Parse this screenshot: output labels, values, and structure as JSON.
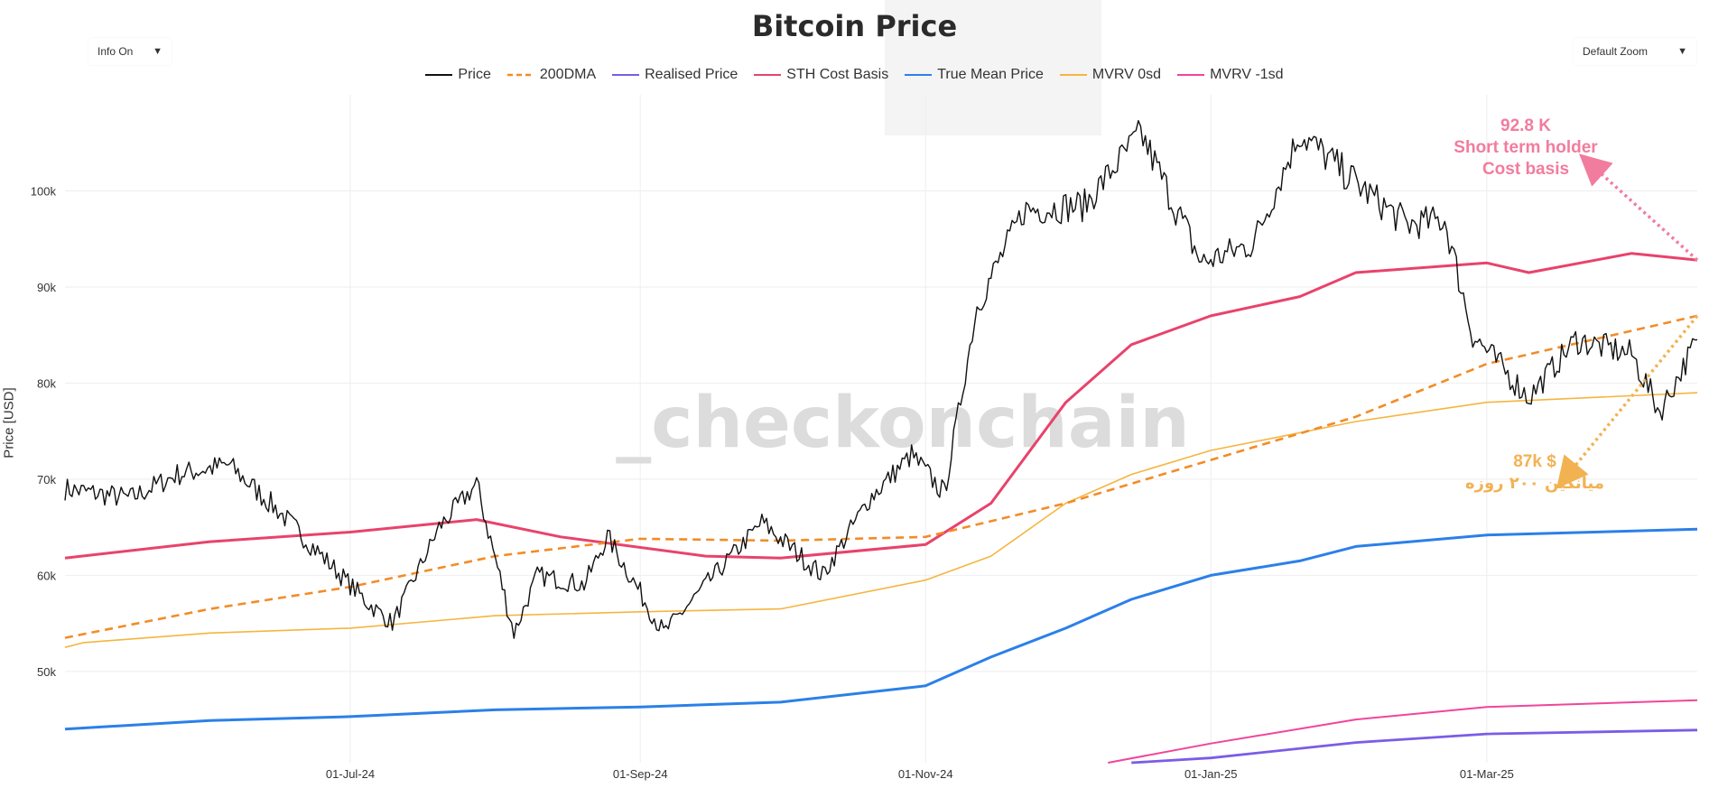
{
  "controls": {
    "info": {
      "label": "Info On"
    },
    "zoom": {
      "label": "Default Zoom"
    }
  },
  "chart_data": {
    "type": "line",
    "title": "Bitcoin Price",
    "ylabel": "Price [USD]",
    "xlabel": "",
    "ylim": [
      40500,
      110000
    ],
    "x_range": [
      "2024-05-01",
      "2025-04-15"
    ],
    "yticks": [
      {
        "value": 50000,
        "label": "50k"
      },
      {
        "value": 60000,
        "label": "60k"
      },
      {
        "value": 70000,
        "label": "70k"
      },
      {
        "value": 80000,
        "label": "80k"
      },
      {
        "value": 90000,
        "label": "90k"
      },
      {
        "value": 100000,
        "label": "100k"
      }
    ],
    "xticks": [
      {
        "date": "2024-07-01",
        "label": "01-Jul-24"
      },
      {
        "date": "2024-09-01",
        "label": "01-Sep-24"
      },
      {
        "date": "2024-11-01",
        "label": "01-Nov-24"
      },
      {
        "date": "2025-01-01",
        "label": "01-Jan-25"
      },
      {
        "date": "2025-03-01",
        "label": "01-Mar-25"
      }
    ],
    "grid": true,
    "legend_position": "top-center",
    "watermark": "_checkonchain",
    "series": [
      {
        "name": "Price",
        "color": "#111111",
        "style": "solid",
        "points": [
          [
            "2024-05-01",
            69000
          ],
          [
            "2024-05-15",
            68000
          ],
          [
            "2024-05-25",
            70500
          ],
          [
            "2024-06-05",
            71500
          ],
          [
            "2024-06-15",
            67000
          ],
          [
            "2024-06-25",
            62000
          ],
          [
            "2024-07-05",
            57000
          ],
          [
            "2024-07-10",
            55000
          ],
          [
            "2024-07-20",
            65000
          ],
          [
            "2024-07-28",
            69500
          ],
          [
            "2024-08-05",
            54000
          ],
          [
            "2024-08-10",
            60000
          ],
          [
            "2024-08-20",
            59000
          ],
          [
            "2024-08-25",
            64000
          ],
          [
            "2024-09-06",
            54000
          ],
          [
            "2024-09-15",
            59000
          ],
          [
            "2024-09-27",
            65500
          ],
          [
            "2024-10-10",
            60000
          ],
          [
            "2024-10-20",
            68000
          ],
          [
            "2024-10-29",
            72500
          ],
          [
            "2024-11-05",
            68500
          ],
          [
            "2024-11-12",
            88000
          ],
          [
            "2024-11-22",
            98000
          ],
          [
            "2024-12-05",
            98500
          ],
          [
            "2024-12-17",
            106000
          ],
          [
            "2024-12-30",
            92500
          ],
          [
            "2025-01-10",
            94500
          ],
          [
            "2025-01-20",
            106000
          ],
          [
            "2025-02-03",
            100000
          ],
          [
            "2025-02-12",
            96500
          ],
          [
            "2025-02-20",
            97000
          ],
          [
            "2025-02-26",
            85000
          ],
          [
            "2025-03-10",
            78500
          ],
          [
            "2025-03-20",
            84500
          ],
          [
            "2025-04-01",
            83000
          ],
          [
            "2025-04-07",
            77000
          ],
          [
            "2025-04-15",
            84500
          ]
        ]
      },
      {
        "name": "200DMA",
        "color": "#f28c28",
        "style": "dashed",
        "points": [
          [
            "2024-05-01",
            53500
          ],
          [
            "2024-06-01",
            56500
          ],
          [
            "2024-07-01",
            58800
          ],
          [
            "2024-08-01",
            62000
          ],
          [
            "2024-09-01",
            63800
          ],
          [
            "2024-10-01",
            63600
          ],
          [
            "2024-11-01",
            64000
          ],
          [
            "2024-12-01",
            67500
          ],
          [
            "2025-01-01",
            72000
          ],
          [
            "2025-02-01",
            76500
          ],
          [
            "2025-03-01",
            82000
          ],
          [
            "2025-04-15",
            87000
          ]
        ]
      },
      {
        "name": "Realised Price",
        "color": "#7b5ce6",
        "style": "solid",
        "points": [
          [
            "2024-12-15",
            40000
          ],
          [
            "2025-01-01",
            41000
          ],
          [
            "2025-02-01",
            42600
          ],
          [
            "2025-03-01",
            43500
          ],
          [
            "2025-04-15",
            43900
          ]
        ]
      },
      {
        "name": "STH Cost Basis",
        "color": "#e8436b",
        "style": "solid",
        "points": [
          [
            "2024-05-01",
            61800
          ],
          [
            "2024-06-01",
            63500
          ],
          [
            "2024-07-01",
            64500
          ],
          [
            "2024-07-28",
            65800
          ],
          [
            "2024-08-15",
            64000
          ],
          [
            "2024-09-15",
            62000
          ],
          [
            "2024-10-01",
            61800
          ],
          [
            "2024-11-01",
            63200
          ],
          [
            "2024-11-15",
            67500
          ],
          [
            "2024-12-01",
            78000
          ],
          [
            "2024-12-15",
            84000
          ],
          [
            "2025-01-01",
            87000
          ],
          [
            "2025-01-20",
            89000
          ],
          [
            "2025-02-01",
            91500
          ],
          [
            "2025-03-01",
            92500
          ],
          [
            "2025-03-10",
            91500
          ],
          [
            "2025-04-01",
            93500
          ],
          [
            "2025-04-15",
            92800
          ]
        ]
      },
      {
        "name": "True Mean Price",
        "color": "#2b80e8",
        "style": "solid",
        "points": [
          [
            "2024-05-01",
            44000
          ],
          [
            "2024-06-01",
            44900
          ],
          [
            "2024-07-01",
            45300
          ],
          [
            "2024-08-01",
            46000
          ],
          [
            "2024-09-01",
            46300
          ],
          [
            "2024-10-01",
            46800
          ],
          [
            "2024-11-01",
            48500
          ],
          [
            "2024-11-15",
            51500
          ],
          [
            "2024-12-01",
            54500
          ],
          [
            "2024-12-15",
            57500
          ],
          [
            "2025-01-01",
            60000
          ],
          [
            "2025-01-20",
            61500
          ],
          [
            "2025-02-01",
            63000
          ],
          [
            "2025-03-01",
            64200
          ],
          [
            "2025-04-15",
            64800
          ]
        ]
      },
      {
        "name": "MVRV 0sd",
        "color": "#f5b540",
        "style": "solid",
        "points": [
          [
            "2024-05-01",
            52500
          ],
          [
            "2024-05-05",
            53000
          ],
          [
            "2024-06-01",
            54000
          ],
          [
            "2024-07-01",
            54500
          ],
          [
            "2024-08-01",
            55800
          ],
          [
            "2024-09-01",
            56200
          ],
          [
            "2024-10-01",
            56500
          ],
          [
            "2024-11-01",
            59500
          ],
          [
            "2024-11-15",
            62000
          ],
          [
            "2024-12-01",
            67500
          ],
          [
            "2024-12-15",
            70500
          ],
          [
            "2025-01-01",
            73000
          ],
          [
            "2025-02-01",
            76000
          ],
          [
            "2025-03-01",
            78000
          ],
          [
            "2025-04-15",
            79000
          ]
        ]
      },
      {
        "name": "MVRV -1sd",
        "color": "#f0459a",
        "style": "solid",
        "points": [
          [
            "2024-12-10",
            40500
          ],
          [
            "2025-01-01",
            42500
          ],
          [
            "2025-02-01",
            45000
          ],
          [
            "2025-03-01",
            46300
          ],
          [
            "2025-04-15",
            47000
          ]
        ]
      }
    ],
    "legend": [
      {
        "label": "Price",
        "color": "#111111",
        "style": "solid"
      },
      {
        "label": "200DMA",
        "color": "#f28c28",
        "style": "dashed"
      },
      {
        "label": "Realised Price",
        "color": "#7b5ce6",
        "style": "solid"
      },
      {
        "label": "STH Cost Basis",
        "color": "#e8436b",
        "style": "solid"
      },
      {
        "label": "True Mean Price",
        "color": "#2b80e8",
        "style": "solid"
      },
      {
        "label": "MVRV 0sd",
        "color": "#f5b540",
        "style": "solid"
      },
      {
        "label": "MVRV -1sd",
        "color": "#f0459a",
        "style": "solid"
      }
    ],
    "annotations": [
      {
        "id": "sth",
        "lines": [
          "92.8 K",
          "Short term holder",
          "Cost basis"
        ],
        "color": "#f27c9e",
        "target_series": "STH Cost Basis",
        "target_value": 92800
      },
      {
        "id": "dma",
        "lines": [
          "87k $",
          "میانگین ۲۰۰ روزه"
        ],
        "color": "#f2b252",
        "target_series": "200DMA",
        "target_value": 87000
      }
    ]
  }
}
